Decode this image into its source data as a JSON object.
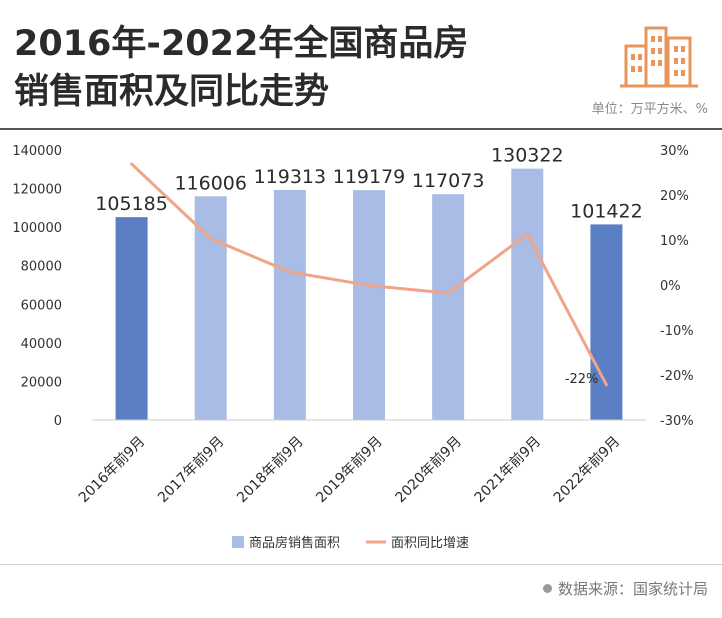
{
  "title_line1": "2016年-2022年全国商品房",
  "title_line2": "销售面积及同比走势",
  "unit": "单位：万平方米、%",
  "source": "数据来源：国家统计局",
  "colors": {
    "bar_dark": "#5b7fc4",
    "bar_light": "#a8bce6",
    "line": "#f0a488",
    "logo": "#e8945a"
  },
  "chart_data": {
    "type": "bar",
    "categories": [
      "2016年前9月",
      "2017年前9月",
      "2018年前9月",
      "2019年前9月",
      "2020年前9月",
      "2021年前9月",
      "2022年前9月"
    ],
    "series": [
      {
        "name": "商品房销售面积",
        "type": "bar",
        "axis": "left",
        "values": [
          105185,
          116006,
          119313,
          119179,
          117073,
          130322,
          101422
        ],
        "value_labels": [
          "105185",
          "116006",
          "119313",
          "119179",
          "117073",
          "130322",
          "101422"
        ],
        "highlight": [
          true,
          false,
          false,
          false,
          false,
          false,
          true
        ]
      },
      {
        "name": "面积同比增速",
        "type": "line",
        "axis": "right",
        "values": [
          26.9,
          10.3,
          2.9,
          -0.1,
          -1.8,
          11.3,
          -22.2
        ],
        "point_labels": [
          "",
          "",
          "",
          "",
          "",
          "",
          "-22%"
        ]
      }
    ],
    "left_axis": {
      "min": 0,
      "max": 140000,
      "ticks": [
        "0",
        "20000",
        "40000",
        "60000",
        "80000",
        "100000",
        "120000",
        "140000"
      ]
    },
    "right_axis": {
      "min": -30,
      "max": 30,
      "ticks": [
        "-30%",
        "-20%",
        "-10%",
        "0%",
        "10%",
        "20%",
        "30%"
      ]
    },
    "grid": false,
    "legend_position": "bottom"
  }
}
